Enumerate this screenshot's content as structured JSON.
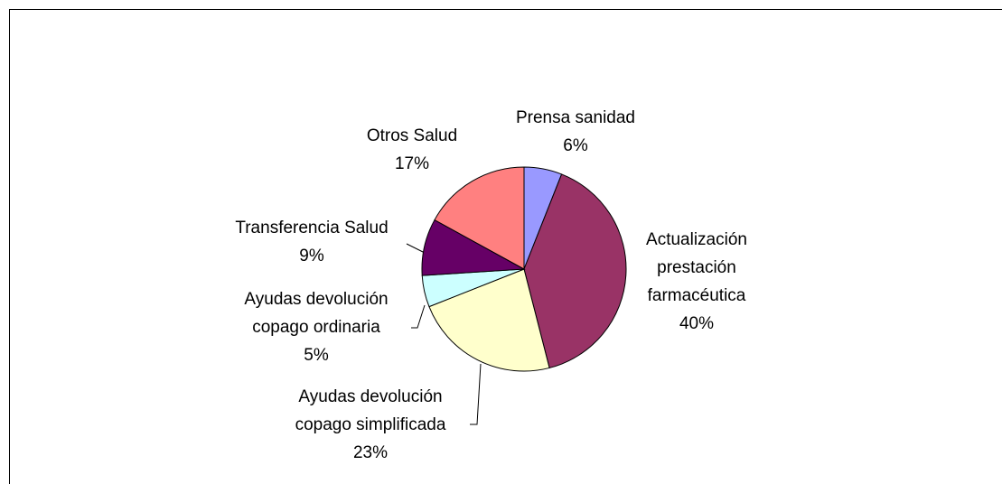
{
  "chart_data": {
    "type": "pie",
    "categories": [
      "Prensa sanidad",
      "Actualización prestación farmacéutica",
      "Ayudas devolución copago simplificada",
      "Ayudas devolución copago ordinaria",
      "Transferencia Salud",
      "Otros Salud"
    ],
    "values": [
      6,
      40,
      23,
      5,
      9,
      17
    ],
    "value_labels": [
      "6%",
      "40%",
      "23%",
      "5%",
      "9%",
      "17%"
    ],
    "colors": [
      "#9999ff",
      "#993366",
      "#ffffcc",
      "#ccffff",
      "#660066",
      "#ff8080"
    ]
  }
}
